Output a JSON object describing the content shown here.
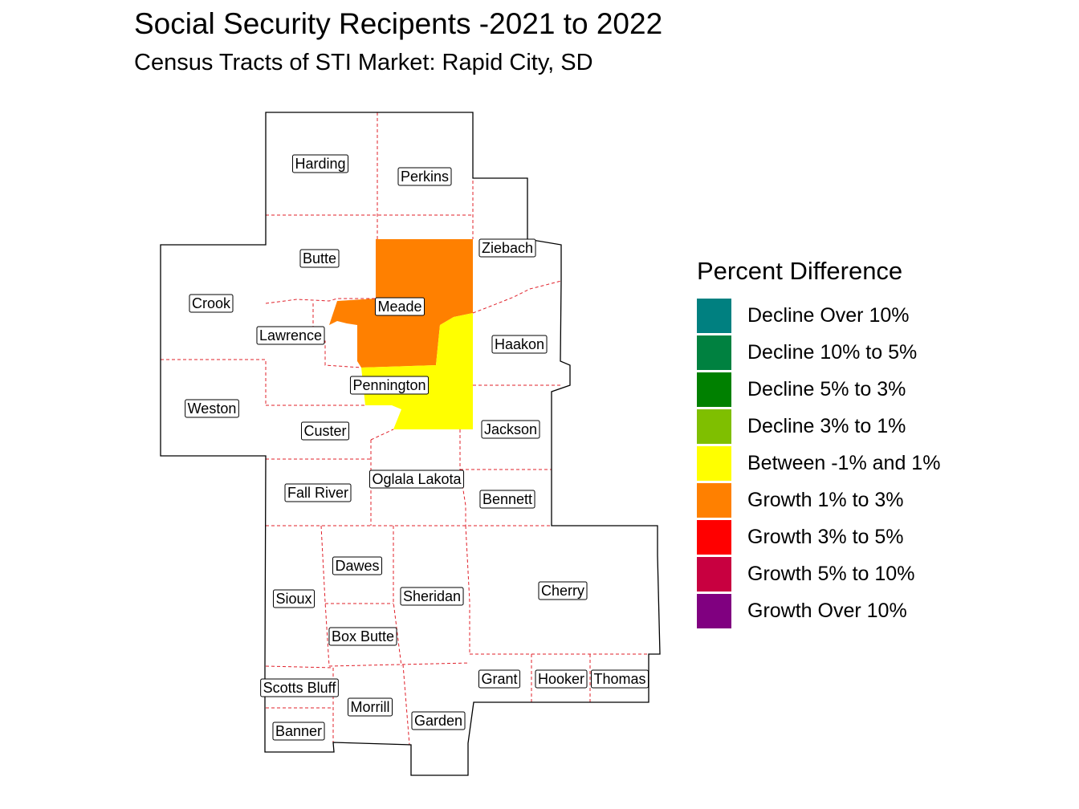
{
  "title": "Social Security Recipents -2021 to 2022",
  "subtitle": "Census Tracts of STI Market: Rapid City, SD",
  "legend": {
    "title": "Percent Difference",
    "items": [
      {
        "label": "Decline Over 10%",
        "color": "#008080"
      },
      {
        "label": "Decline 10% to 5%",
        "color": "#008140"
      },
      {
        "label": "Decline 5% to 3%",
        "color": "#008000"
      },
      {
        "label": "Decline 3% to 1%",
        "color": "#7fbf00"
      },
      {
        "label": "Between -1% and 1%",
        "color": "#ffff00"
      },
      {
        "label": "Growth 1% to 3%",
        "color": "#ff8000"
      },
      {
        "label": "Growth 3% to 5%",
        "color": "#ff0000"
      },
      {
        "label": "Growth 5% to 10%",
        "color": "#c80040"
      },
      {
        "label": "Growth Over 10%",
        "color": "#800080"
      }
    ]
  },
  "counties": {
    "harding": "Harding",
    "perkins": "Perkins",
    "butte": "Butte",
    "ziebach": "Ziebach",
    "crook": "Crook",
    "meade": "Meade",
    "lawrence": "Lawrence",
    "haakon": "Haakon",
    "pennington": "Pennington",
    "weston": "Weston",
    "custer": "Custer",
    "jackson": "Jackson",
    "oglala_lakota": "Oglala Lakota",
    "fall_river": "Fall River",
    "bennett": "Bennett",
    "dawes": "Dawes",
    "cherry": "Cherry",
    "sioux": "Sioux",
    "sheridan": "Sheridan",
    "box_butte": "Box Butte",
    "grant": "Grant",
    "hooker": "Hooker",
    "thomas": "Thomas",
    "scotts_bluff": "Scotts Bluff",
    "morrill": "Morrill",
    "garden": "Garden",
    "banner": "Banner"
  },
  "highlight": {
    "meade": "Growth 1% to 3%",
    "pennington": "Between -1% and 1%"
  }
}
